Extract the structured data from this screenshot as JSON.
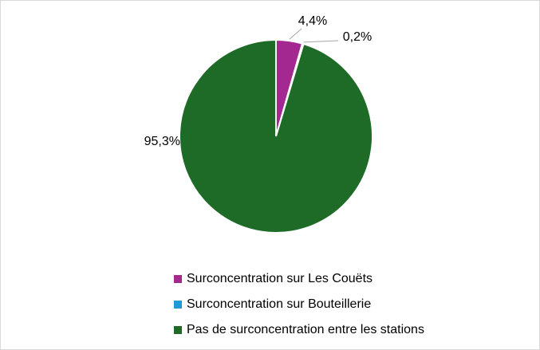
{
  "chart_data": {
    "type": "pie",
    "categories": [
      "Surconcentration sur Les Couëts",
      "Surconcentration sur Bouteillerie",
      "Pas de surconcentration entre les stations"
    ],
    "values": [
      4.4,
      0.2,
      95.3
    ],
    "value_labels": [
      "4,4%",
      "0,2%",
      "95,3%"
    ],
    "colors": [
      "#a3288f",
      "#1f9ad6",
      "#1d6b27"
    ],
    "legend": "bottom"
  }
}
